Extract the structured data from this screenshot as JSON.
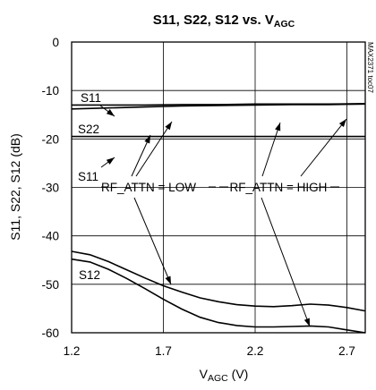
{
  "chart_data": {
    "type": "line",
    "title": "S11, S22, S12 vs. V",
    "title_subscript": "AGC",
    "xlabel": "V",
    "xlabel_subscript": "AGC",
    "xlabel_unit": " (V)",
    "ylabel": "S11, S22, S12 (dB)",
    "xlim": [
      1.2,
      2.8
    ],
    "ylim": [
      -60,
      0
    ],
    "xticks": [
      1.2,
      1.7,
      2.2,
      2.7
    ],
    "xtick_labels": [
      "1.2",
      "1.7",
      "2.2",
      "2.7"
    ],
    "yticks": [
      0,
      -10,
      -20,
      -30,
      -40,
      -50,
      -60
    ],
    "ytick_labels": [
      "0",
      "-10",
      "-20",
      "-30",
      "-40",
      "-50",
      "-60"
    ],
    "grid": true,
    "code": "MAX2371 toc07",
    "curve_labels": [
      "S11",
      "S22",
      "S11",
      "S12"
    ],
    "annotations": [
      "RF_ATTN = LOW",
      "RF_ATTN = HIGH"
    ],
    "series": [
      {
        "name": "S11",
        "x": [
          1.2,
          1.4,
          1.6,
          1.8,
          2.0,
          2.2,
          2.4,
          2.6,
          2.8
        ],
        "values": [
          -13.0,
          -13.0,
          -13.0,
          -12.9,
          -12.9,
          -12.8,
          -12.8,
          -12.8,
          -12.7
        ]
      },
      {
        "name": "S22",
        "x": [
          1.2,
          1.4,
          1.6,
          1.8,
          2.0,
          2.2,
          2.4,
          2.6,
          2.8
        ],
        "values": [
          -13.8,
          -13.6,
          -13.4,
          -13.2,
          -13.1,
          -13.0,
          -12.9,
          -12.9,
          -12.8
        ]
      },
      {
        "name": "S11",
        "x": [
          1.2,
          1.4,
          1.6,
          1.8,
          2.0,
          2.2,
          2.4,
          2.6,
          2.8
        ],
        "values": [
          -19.5,
          -19.5,
          -19.5,
          -19.5,
          -19.5,
          -19.5,
          -19.5,
          -19.5,
          -19.5
        ]
      },
      {
        "name": "S12",
        "x": [
          1.2,
          1.3,
          1.4,
          1.5,
          1.6,
          1.7,
          1.8,
          1.9,
          2.0,
          2.1,
          2.2,
          2.3,
          2.4,
          2.5,
          2.6,
          2.7,
          2.8
        ],
        "values": [
          -43.2,
          -43.9,
          -45.3,
          -47.0,
          -48.7,
          -50.3,
          -51.6,
          -52.8,
          -53.6,
          -54.2,
          -54.5,
          -54.6,
          -54.4,
          -54.1,
          -54.3,
          -54.8,
          -55.5
        ]
      },
      {
        "name": "S12",
        "x": [
          1.2,
          1.3,
          1.4,
          1.5,
          1.6,
          1.7,
          1.8,
          1.9,
          2.0,
          2.1,
          2.2,
          2.3,
          2.4,
          2.5,
          2.6,
          2.7,
          2.8
        ],
        "values": [
          -44.8,
          -45.4,
          -46.9,
          -48.8,
          -50.9,
          -53.1,
          -55.1,
          -56.8,
          -57.9,
          -58.5,
          -58.8,
          -58.8,
          -58.7,
          -58.6,
          -58.8,
          -59.4,
          -60.0
        ]
      }
    ]
  }
}
